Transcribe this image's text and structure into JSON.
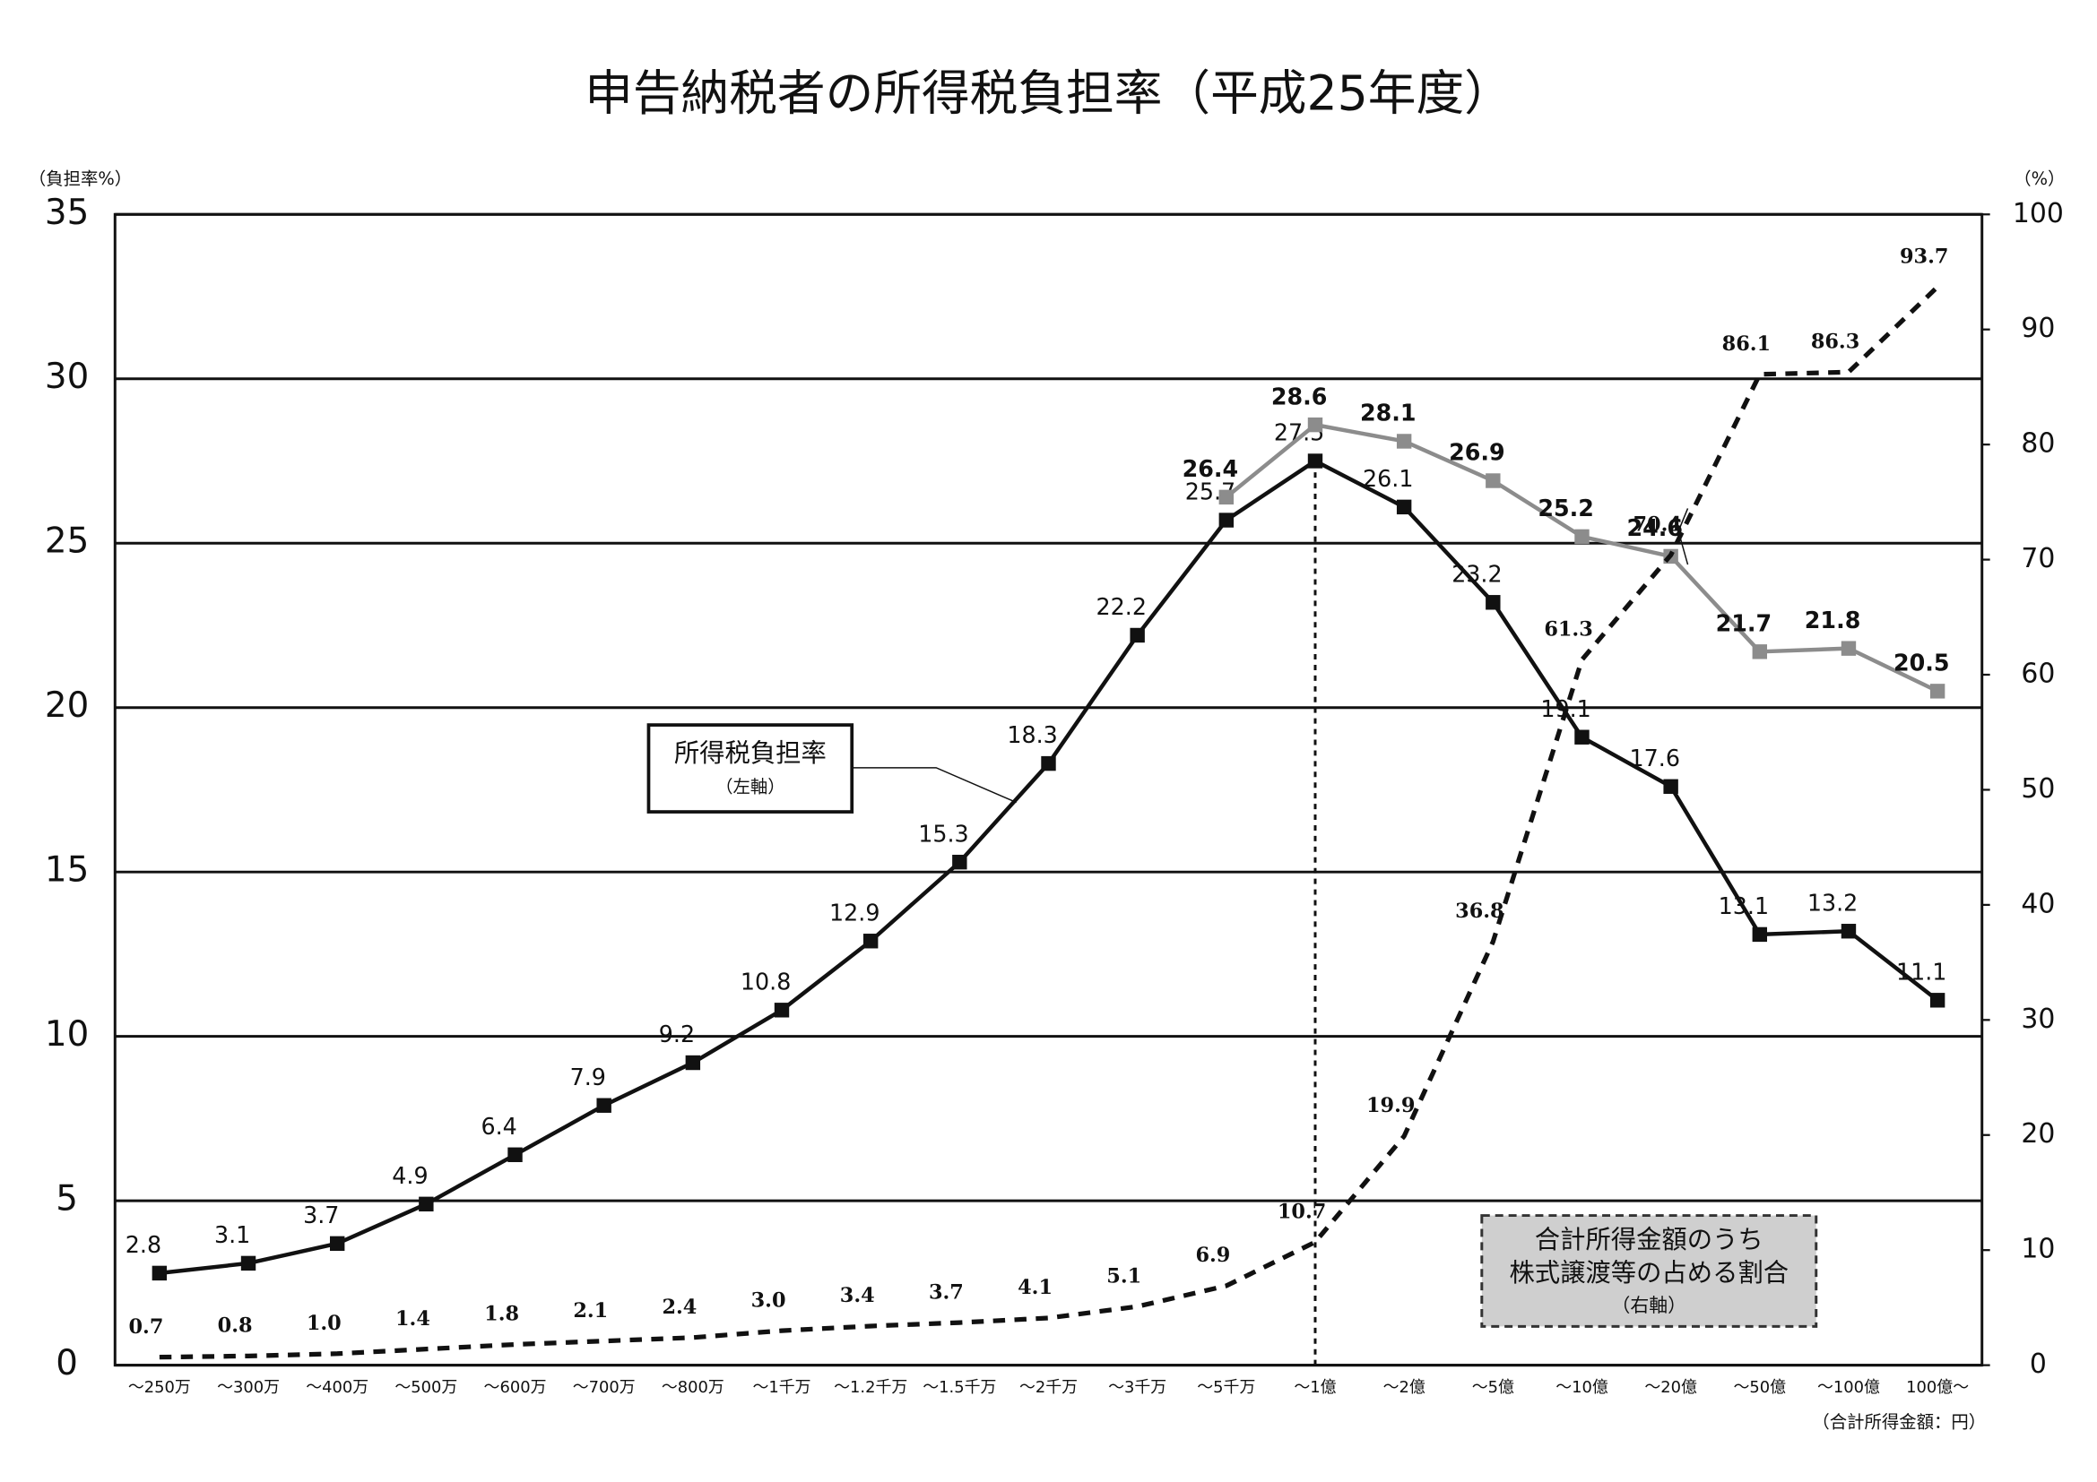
{
  "chart_data": {
    "type": "line",
    "title": "申告納税者の所得税負担率（平成25年度）",
    "y_label": "（負担率%）",
    "y2_label": "（%）",
    "x_label": "（合計所得金額：円）",
    "categories": [
      "～250万",
      "～300万",
      "～400万",
      "～500万",
      "～600万",
      "～700万",
      "～800万",
      "～1千万",
      "～1.2千万",
      "～1.5千万",
      "～2千万",
      "～3千万",
      "～5千万",
      "～1億",
      "～2億",
      "～5億",
      "～10億",
      "～20億",
      "～50億",
      "～100億",
      "100億～"
    ],
    "ylim": [
      0,
      35
    ],
    "yticks": [
      0,
      5,
      10,
      15,
      20,
      25,
      30,
      35
    ],
    "y2lim": [
      0,
      100
    ],
    "y2ticks": [
      0,
      10,
      20,
      30,
      40,
      50,
      60,
      70,
      80,
      90,
      100
    ],
    "grid": true,
    "series": [
      {
        "name": "所得税負担率",
        "color": "#111111",
        "line_style": "solid",
        "marker": "square",
        "values": [
          2.8,
          3.1,
          3.7,
          4.9,
          6.4,
          7.9,
          9.2,
          10.8,
          12.9,
          15.3,
          18.3,
          22.2,
          25.7,
          27.5,
          26.1,
          23.2,
          19.1,
          17.6,
          13.1,
          13.2,
          11.1
        ]
      },
      {
        "color": "#8c8c8c",
        "line_style": "solid",
        "marker": "square",
        "values": [
          null,
          null,
          null,
          null,
          null,
          null,
          null,
          null,
          null,
          null,
          null,
          null,
          26.4,
          28.6,
          28.1,
          26.9,
          25.2,
          24.6,
          21.7,
          21.8,
          20.5
        ]
      },
      {
        "name": "合計所得金額のうち株式譲渡等の占める割合",
        "color": "#111111",
        "line_style": "dashed",
        "marker": "none",
        "axis": "y2",
        "values": [
          0.7,
          0.8,
          1.0,
          1.4,
          1.8,
          2.1,
          2.4,
          3.0,
          3.4,
          3.7,
          4.1,
          5.1,
          6.9,
          10.7,
          19.9,
          36.8,
          61.3,
          70.4,
          86.1,
          86.3,
          93.7
        ],
        "value_labels": [
          "0.7",
          "0.8",
          "1.0",
          "1.4",
          "1.8",
          "2.1",
          "2.4",
          "3.0",
          "3.4",
          "3.7",
          "4.1",
          "5.1",
          "6.9",
          "10.7",
          "19.9",
          "36.8",
          "61.3",
          "70.4",
          "86.1",
          "86.3",
          "93.7"
        ]
      }
    ],
    "annotations": [
      "所得税負担率",
      "（左軸）",
      "合計所得金額のうち",
      "株式譲渡等の占める割合",
      "（右軸）"
    ]
  }
}
